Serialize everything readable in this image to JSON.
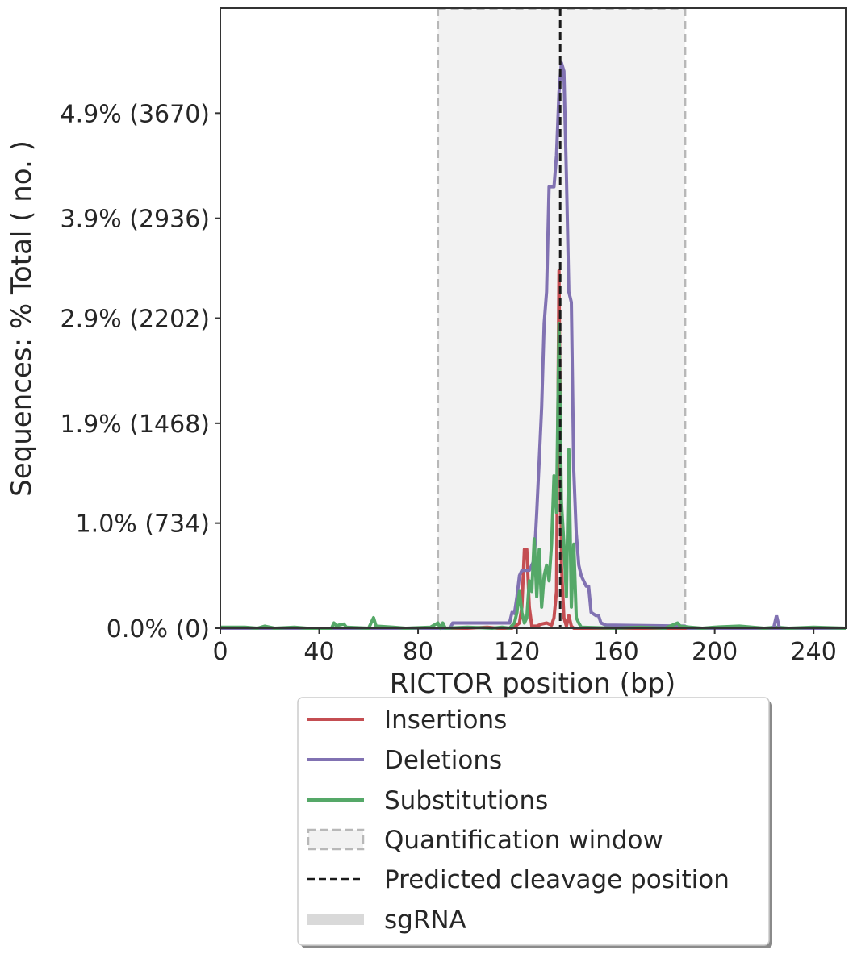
{
  "chart_data": {
    "type": "line",
    "xlabel": "RICTOR position (bp)",
    "ylabel": "Sequences: % Total ( no. )",
    "xlim": [
      0,
      253
    ],
    "ylim": [
      0,
      5.9
    ],
    "x_ticks": [
      0,
      40,
      80,
      120,
      160,
      200,
      240
    ],
    "y_ticks": [
      {
        "value": 0.0,
        "label": "0.0% (0)"
      },
      {
        "value": 1.0,
        "label": "1.0% (734)"
      },
      {
        "value": 1.95,
        "label": "1.9% (1468)"
      },
      {
        "value": 2.95,
        "label": "2.9% (2202)"
      },
      {
        "value": 3.9,
        "label": "3.9% (2936)"
      },
      {
        "value": 4.9,
        "label": "4.9% (3670)"
      }
    ],
    "quantification_window": [
      88,
      188
    ],
    "predicted_cleavage_position": 137.5,
    "grid": false,
    "legend_position": "below",
    "colors": {
      "insertions": "#c44e52",
      "deletions": "#8172b2",
      "substitutions": "#55a868",
      "window_fill": "#f2f2f2",
      "window_edge": "#b8b8b8",
      "cleavage": "#1a1a1a",
      "sgrna": "#d9d9d9"
    },
    "series": [
      {
        "name": "Insertions",
        "color": "#c44e52",
        "points": [
          [
            0,
            0
          ],
          [
            100,
            0
          ],
          [
            108,
            0.01
          ],
          [
            112,
            0
          ],
          [
            118,
            0
          ],
          [
            120,
            0.03
          ],
          [
            121,
            0.05
          ],
          [
            122,
            0.2
          ],
          [
            123,
            0.75
          ],
          [
            124,
            0.75
          ],
          [
            125,
            0.2
          ],
          [
            126,
            0.02
          ],
          [
            128,
            0.02
          ],
          [
            130,
            0.04
          ],
          [
            132,
            0.05
          ],
          [
            134,
            0.03
          ],
          [
            135,
            0.1
          ],
          [
            136,
            0.35
          ],
          [
            137,
            3.4
          ],
          [
            138,
            0.6
          ],
          [
            139,
            0.1
          ],
          [
            140,
            0.02
          ],
          [
            141,
            0.12
          ],
          [
            142,
            0.02
          ],
          [
            143,
            0
          ],
          [
            253,
            0
          ]
        ]
      },
      {
        "name": "Deletions",
        "color": "#8172b2",
        "points": [
          [
            0,
            0
          ],
          [
            93,
            0
          ],
          [
            94,
            0.05
          ],
          [
            117,
            0.05
          ],
          [
            118,
            0.15
          ],
          [
            119,
            0.14
          ],
          [
            120,
            0.3
          ],
          [
            121,
            0.5
          ],
          [
            122,
            0.55
          ],
          [
            125,
            0.55
          ],
          [
            127,
            0.65
          ],
          [
            128,
            1.1
          ],
          [
            129,
            1.6
          ],
          [
            130,
            2.1
          ],
          [
            131,
            2.9
          ],
          [
            132,
            3.2
          ],
          [
            133,
            4.2
          ],
          [
            135,
            4.2
          ],
          [
            136,
            4.5
          ],
          [
            137,
            5.1
          ],
          [
            138,
            5.38
          ],
          [
            139,
            5.3
          ],
          [
            140,
            4.3
          ],
          [
            141,
            3.2
          ],
          [
            142,
            3.1
          ],
          [
            143,
            1.5
          ],
          [
            144,
            0.9
          ],
          [
            145,
            0.6
          ],
          [
            146,
            0.5
          ],
          [
            148,
            0.4
          ],
          [
            149,
            0.4
          ],
          [
            150,
            0.15
          ],
          [
            152,
            0.12
          ],
          [
            153,
            0.12
          ],
          [
            154,
            0.05
          ],
          [
            156,
            0.03
          ],
          [
            188,
            0.02
          ],
          [
            189,
            0
          ],
          [
            253,
            0
          ]
        ]
      },
      {
        "name": "Substitutions",
        "color": "#55a868",
        "points": [
          [
            0,
            0.01
          ],
          [
            10,
            0.01
          ],
          [
            15,
            0
          ],
          [
            18,
            0.02
          ],
          [
            20,
            0.01
          ],
          [
            22,
            0
          ],
          [
            30,
            0.01
          ],
          [
            35,
            0
          ],
          [
            45,
            0
          ],
          [
            46,
            0.05
          ],
          [
            47,
            0.02
          ],
          [
            48,
            0.03
          ],
          [
            50,
            0.04
          ],
          [
            51,
            0.01
          ],
          [
            60,
            0
          ],
          [
            62,
            0.1
          ],
          [
            63,
            0.02
          ],
          [
            70,
            0.01
          ],
          [
            75,
            0
          ],
          [
            85,
            0.01
          ],
          [
            88,
            0.05
          ],
          [
            89,
            0
          ],
          [
            90,
            0.05
          ],
          [
            91,
            0
          ],
          [
            100,
            0.01
          ],
          [
            110,
            0
          ],
          [
            114,
            0.01
          ],
          [
            117,
            0
          ],
          [
            119,
            0.05
          ],
          [
            120,
            0.15
          ],
          [
            121,
            0.35
          ],
          [
            122,
            0.15
          ],
          [
            123,
            0.05
          ],
          [
            124,
            0.1
          ],
          [
            125,
            0.45
          ],
          [
            126,
            0.35
          ],
          [
            127,
            0.85
          ],
          [
            128,
            0.3
          ],
          [
            129,
            0.75
          ],
          [
            130,
            0.2
          ],
          [
            131,
            0.5
          ],
          [
            132,
            0.6
          ],
          [
            133,
            0.45
          ],
          [
            134,
            0.8
          ],
          [
            135,
            1.45
          ],
          [
            136,
            1.1
          ],
          [
            137,
            2.9
          ],
          [
            138,
            1.2
          ],
          [
            139,
            0.8
          ],
          [
            140,
            0.3
          ],
          [
            141,
            1.7
          ],
          [
            142,
            0.2
          ],
          [
            143,
            0.8
          ],
          [
            144,
            0.1
          ],
          [
            145,
            0.05
          ],
          [
            146,
            0.01
          ],
          [
            160,
            0
          ],
          [
            170,
            0.01
          ],
          [
            180,
            0
          ],
          [
            185,
            0.05
          ],
          [
            186,
            0.02
          ],
          [
            190,
            0.01
          ],
          [
            195,
            0
          ],
          [
            200,
            0.01
          ],
          [
            210,
            0.02
          ],
          [
            220,
            0
          ],
          [
            225,
            0.01
          ],
          [
            230,
            0
          ],
          [
            240,
            0.01
          ],
          [
            253,
            0
          ]
        ]
      }
    ],
    "sgrna_marker": {
      "x": 225,
      "y": 0.12
    }
  },
  "legend": {
    "insertions": "Insertions",
    "deletions": "Deletions",
    "substitutions": "Substitutions",
    "window": "Quantification window",
    "cleavage": "Predicted cleavage position",
    "sgrna": "sgRNA"
  }
}
